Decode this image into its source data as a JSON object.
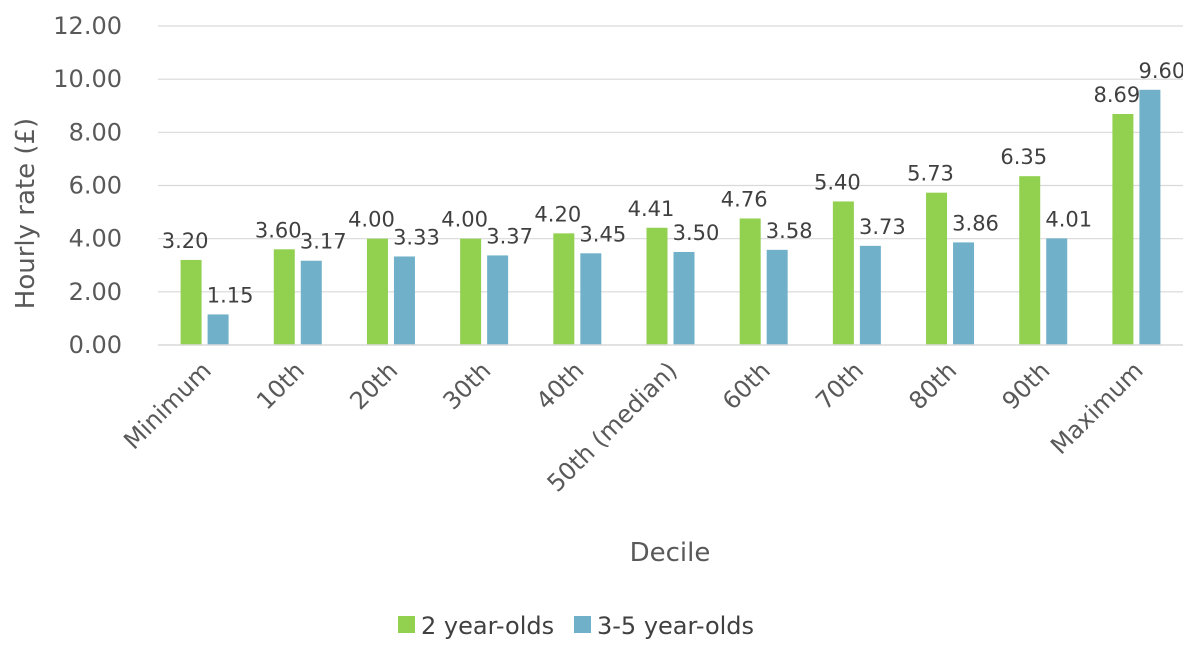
{
  "chart_data": {
    "type": "bar",
    "title": "",
    "xlabel": "Decile",
    "ylabel": "Hourly rate (£)",
    "ylim": [
      0,
      12
    ],
    "ytick_step": 2,
    "grid": true,
    "legend_position": "bottom",
    "categories": [
      "Minimum",
      "10th",
      "20th",
      "30th",
      "40th",
      "50th (median)",
      "60th",
      "70th",
      "80th",
      "90th",
      "Maximum"
    ],
    "series": [
      {
        "name": "2 year-olds",
        "color": "#92d050",
        "values": [
          3.2,
          3.6,
          4.0,
          4.0,
          4.2,
          4.41,
          4.76,
          5.4,
          5.73,
          6.35,
          8.69
        ]
      },
      {
        "name": "3-5 year-olds",
        "color": "#70b1c9",
        "values": [
          1.15,
          3.17,
          3.33,
          3.37,
          3.45,
          3.5,
          3.58,
          3.73,
          3.86,
          4.01,
          9.6
        ]
      }
    ]
  }
}
